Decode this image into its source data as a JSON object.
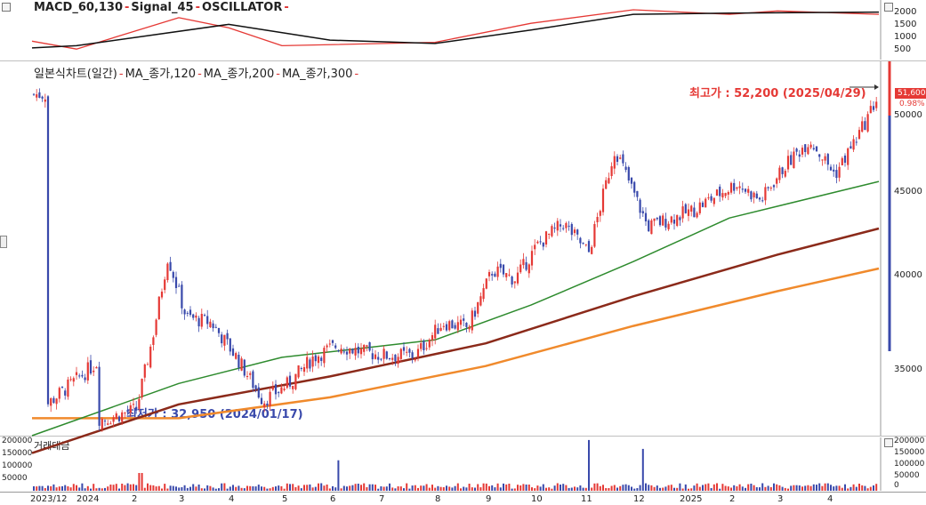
{
  "macd_panel": {
    "title_parts": [
      "MACD_60,130",
      "Signal_45",
      "OSCILLATOR"
    ],
    "y_ticks": [
      "2000",
      "1500",
      "1000",
      "500"
    ]
  },
  "price_panel": {
    "title_parts": [
      "일본식차트(일간)",
      "MA_종가,120",
      "MA_종가,200",
      "MA_종가,300"
    ],
    "y_ticks": [
      "50000",
      "45000",
      "40000",
      "35000"
    ],
    "high_annotation": "최고가 : 52,200 (2025/04/29)",
    "low_annotation": "최저가 : 32,950 (2024/01/17)",
    "last_price": "51,600",
    "last_change": "0.98%"
  },
  "volume_panel": {
    "title": "거래대금",
    "y_ticks_left": [
      "200000",
      "150000",
      "100000",
      "50000"
    ],
    "y_ticks_right": [
      "200000",
      "150000",
      "100000",
      "50000",
      "0"
    ]
  },
  "x_axis_labels": [
    "2023/12",
    "2024",
    "2",
    "3",
    "4",
    "5",
    "6",
    "7",
    "8",
    "9",
    "10",
    "11",
    "12",
    "2025",
    "2",
    "3",
    "4"
  ],
  "colors": {
    "up": "#e53935",
    "down": "#3949ab",
    "ma120": "#2e8b2e",
    "ma200": "#8b2a1a",
    "ma300": "#f08a2c",
    "macd": "#e53935",
    "signal": "#111111"
  },
  "chart_data": {
    "type": "candlestick",
    "ylim": [
      32000,
      53500
    ],
    "high": {
      "value": 52200,
      "date": "2025/04/29"
    },
    "low": {
      "value": 32950,
      "date": "2024/01/17"
    },
    "close_path": [
      [
        "2023/12",
        33800
      ],
      [
        "2023/12",
        36200
      ],
      [
        "2024",
        33200
      ],
      [
        "2024/01/17",
        32950
      ],
      [
        "2024/02",
        33500
      ],
      [
        "2024/02",
        37500
      ],
      [
        "2024/02",
        42300
      ],
      [
        "2024/03",
        38800
      ],
      [
        "2024/03",
        38500
      ],
      [
        "2024/04",
        36500
      ],
      [
        "2024/04",
        34000
      ],
      [
        "2024/05",
        35000
      ],
      [
        "2024/05",
        36500
      ],
      [
        "2024/06",
        37200
      ],
      [
        "2024/06",
        36800
      ],
      [
        "2024/07",
        36600
      ],
      [
        "2024/07",
        36600
      ],
      [
        "2024/08",
        38500
      ],
      [
        "2024/08",
        38200
      ],
      [
        "2024/09",
        41500
      ],
      [
        "2024/09",
        41000
      ],
      [
        "2024/10",
        43000
      ],
      [
        "2024/10",
        44200
      ],
      [
        "2024/11",
        42500
      ],
      [
        "2024/11",
        48500
      ],
      [
        "2024/12",
        44000
      ],
      [
        "2024/12",
        45000
      ],
      [
        "2025",
        44500
      ],
      [
        "2025/02",
        46500
      ],
      [
        "2025/02",
        45500
      ],
      [
        "2025/03",
        47500
      ],
      [
        "2025/03",
        49000
      ],
      [
        "2025/04",
        47000
      ],
      [
        "2025/04",
        49500
      ],
      [
        "2025/04/29",
        51600
      ]
    ],
    "ma120_path": [
      [
        "2023/12",
        32000
      ],
      [
        "2024/03",
        35000
      ],
      [
        "2024/05",
        36500
      ],
      [
        "2024/08",
        37500
      ],
      [
        "2024/10",
        39500
      ],
      [
        "2024/12",
        42000
      ],
      [
        "2025/02",
        44500
      ],
      [
        "2025/04/29",
        46600
      ]
    ],
    "ma200_path": [
      [
        "2023/12",
        31000
      ],
      [
        "2024/03",
        33800
      ],
      [
        "2024/06",
        35400
      ],
      [
        "2024/09",
        37300
      ],
      [
        "2024/12",
        40000
      ],
      [
        "2025/03",
        42400
      ],
      [
        "2025/04/29",
        43900
      ]
    ],
    "ma300_path": [
      [
        "2023/12",
        33000
      ],
      [
        "2024/03",
        33000
      ],
      [
        "2024/06",
        34200
      ],
      [
        "2024/09",
        36000
      ],
      [
        "2024/12",
        38300
      ],
      [
        "2025/03",
        40300
      ],
      [
        "2025/04/29",
        41600
      ]
    ],
    "macd_path": [
      [
        "2023/12",
        700
      ],
      [
        "2024",
        350
      ],
      [
        "2024/03",
        1750
      ],
      [
        "2024/04",
        1300
      ],
      [
        "2024/05",
        500
      ],
      [
        "2024/08",
        650
      ],
      [
        "2024/10",
        1500
      ],
      [
        "2024/12",
        2100
      ],
      [
        "2025/02",
        1900
      ],
      [
        "2025/03",
        2050
      ],
      [
        "2025/04/29",
        1900
      ]
    ],
    "signal_path": [
      [
        "2023/12",
        400
      ],
      [
        "2024",
        500
      ],
      [
        "2024/04",
        1450
      ],
      [
        "2024/06",
        750
      ],
      [
        "2024/08",
        600
      ],
      [
        "2024/10",
        1200
      ],
      [
        "2024/12",
        1900
      ],
      [
        "2025/02",
        1950
      ],
      [
        "2025/04/29",
        2000
      ]
    ],
    "volume_peaks": [
      [
        "2024/02",
        70000
      ],
      [
        "2024/06",
        120000
      ],
      [
        "2024/11",
        200000
      ],
      [
        "2024/12",
        165000
      ]
    ]
  }
}
